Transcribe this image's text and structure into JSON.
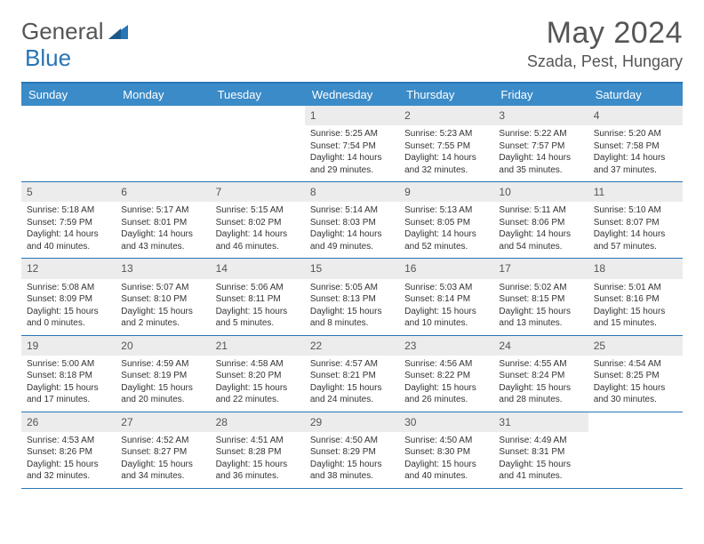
{
  "logo": {
    "text1": "General",
    "text2": "Blue"
  },
  "title": "May 2024",
  "location": "Szada, Pest, Hungary",
  "colors": {
    "brand": "#2775b6",
    "header_row": "#3b8bc8",
    "day_num_bg": "#ececec",
    "text": "#333333",
    "muted": "#555555",
    "white": "#ffffff"
  },
  "dow": [
    "Sunday",
    "Monday",
    "Tuesday",
    "Wednesday",
    "Thursday",
    "Friday",
    "Saturday"
  ],
  "weeks": [
    [
      {
        "n": "",
        "sr": "",
        "ss": "",
        "dl": ""
      },
      {
        "n": "",
        "sr": "",
        "ss": "",
        "dl": ""
      },
      {
        "n": "",
        "sr": "",
        "ss": "",
        "dl": ""
      },
      {
        "n": "1",
        "sr": "Sunrise: 5:25 AM",
        "ss": "Sunset: 7:54 PM",
        "dl": "Daylight: 14 hours and 29 minutes."
      },
      {
        "n": "2",
        "sr": "Sunrise: 5:23 AM",
        "ss": "Sunset: 7:55 PM",
        "dl": "Daylight: 14 hours and 32 minutes."
      },
      {
        "n": "3",
        "sr": "Sunrise: 5:22 AM",
        "ss": "Sunset: 7:57 PM",
        "dl": "Daylight: 14 hours and 35 minutes."
      },
      {
        "n": "4",
        "sr": "Sunrise: 5:20 AM",
        "ss": "Sunset: 7:58 PM",
        "dl": "Daylight: 14 hours and 37 minutes."
      }
    ],
    [
      {
        "n": "5",
        "sr": "Sunrise: 5:18 AM",
        "ss": "Sunset: 7:59 PM",
        "dl": "Daylight: 14 hours and 40 minutes."
      },
      {
        "n": "6",
        "sr": "Sunrise: 5:17 AM",
        "ss": "Sunset: 8:01 PM",
        "dl": "Daylight: 14 hours and 43 minutes."
      },
      {
        "n": "7",
        "sr": "Sunrise: 5:15 AM",
        "ss": "Sunset: 8:02 PM",
        "dl": "Daylight: 14 hours and 46 minutes."
      },
      {
        "n": "8",
        "sr": "Sunrise: 5:14 AM",
        "ss": "Sunset: 8:03 PM",
        "dl": "Daylight: 14 hours and 49 minutes."
      },
      {
        "n": "9",
        "sr": "Sunrise: 5:13 AM",
        "ss": "Sunset: 8:05 PM",
        "dl": "Daylight: 14 hours and 52 minutes."
      },
      {
        "n": "10",
        "sr": "Sunrise: 5:11 AM",
        "ss": "Sunset: 8:06 PM",
        "dl": "Daylight: 14 hours and 54 minutes."
      },
      {
        "n": "11",
        "sr": "Sunrise: 5:10 AM",
        "ss": "Sunset: 8:07 PM",
        "dl": "Daylight: 14 hours and 57 minutes."
      }
    ],
    [
      {
        "n": "12",
        "sr": "Sunrise: 5:08 AM",
        "ss": "Sunset: 8:09 PM",
        "dl": "Daylight: 15 hours and 0 minutes."
      },
      {
        "n": "13",
        "sr": "Sunrise: 5:07 AM",
        "ss": "Sunset: 8:10 PM",
        "dl": "Daylight: 15 hours and 2 minutes."
      },
      {
        "n": "14",
        "sr": "Sunrise: 5:06 AM",
        "ss": "Sunset: 8:11 PM",
        "dl": "Daylight: 15 hours and 5 minutes."
      },
      {
        "n": "15",
        "sr": "Sunrise: 5:05 AM",
        "ss": "Sunset: 8:13 PM",
        "dl": "Daylight: 15 hours and 8 minutes."
      },
      {
        "n": "16",
        "sr": "Sunrise: 5:03 AM",
        "ss": "Sunset: 8:14 PM",
        "dl": "Daylight: 15 hours and 10 minutes."
      },
      {
        "n": "17",
        "sr": "Sunrise: 5:02 AM",
        "ss": "Sunset: 8:15 PM",
        "dl": "Daylight: 15 hours and 13 minutes."
      },
      {
        "n": "18",
        "sr": "Sunrise: 5:01 AM",
        "ss": "Sunset: 8:16 PM",
        "dl": "Daylight: 15 hours and 15 minutes."
      }
    ],
    [
      {
        "n": "19",
        "sr": "Sunrise: 5:00 AM",
        "ss": "Sunset: 8:18 PM",
        "dl": "Daylight: 15 hours and 17 minutes."
      },
      {
        "n": "20",
        "sr": "Sunrise: 4:59 AM",
        "ss": "Sunset: 8:19 PM",
        "dl": "Daylight: 15 hours and 20 minutes."
      },
      {
        "n": "21",
        "sr": "Sunrise: 4:58 AM",
        "ss": "Sunset: 8:20 PM",
        "dl": "Daylight: 15 hours and 22 minutes."
      },
      {
        "n": "22",
        "sr": "Sunrise: 4:57 AM",
        "ss": "Sunset: 8:21 PM",
        "dl": "Daylight: 15 hours and 24 minutes."
      },
      {
        "n": "23",
        "sr": "Sunrise: 4:56 AM",
        "ss": "Sunset: 8:22 PM",
        "dl": "Daylight: 15 hours and 26 minutes."
      },
      {
        "n": "24",
        "sr": "Sunrise: 4:55 AM",
        "ss": "Sunset: 8:24 PM",
        "dl": "Daylight: 15 hours and 28 minutes."
      },
      {
        "n": "25",
        "sr": "Sunrise: 4:54 AM",
        "ss": "Sunset: 8:25 PM",
        "dl": "Daylight: 15 hours and 30 minutes."
      }
    ],
    [
      {
        "n": "26",
        "sr": "Sunrise: 4:53 AM",
        "ss": "Sunset: 8:26 PM",
        "dl": "Daylight: 15 hours and 32 minutes."
      },
      {
        "n": "27",
        "sr": "Sunrise: 4:52 AM",
        "ss": "Sunset: 8:27 PM",
        "dl": "Daylight: 15 hours and 34 minutes."
      },
      {
        "n": "28",
        "sr": "Sunrise: 4:51 AM",
        "ss": "Sunset: 8:28 PM",
        "dl": "Daylight: 15 hours and 36 minutes."
      },
      {
        "n": "29",
        "sr": "Sunrise: 4:50 AM",
        "ss": "Sunset: 8:29 PM",
        "dl": "Daylight: 15 hours and 38 minutes."
      },
      {
        "n": "30",
        "sr": "Sunrise: 4:50 AM",
        "ss": "Sunset: 8:30 PM",
        "dl": "Daylight: 15 hours and 40 minutes."
      },
      {
        "n": "31",
        "sr": "Sunrise: 4:49 AM",
        "ss": "Sunset: 8:31 PM",
        "dl": "Daylight: 15 hours and 41 minutes."
      },
      {
        "n": "",
        "sr": "",
        "ss": "",
        "dl": ""
      }
    ]
  ]
}
